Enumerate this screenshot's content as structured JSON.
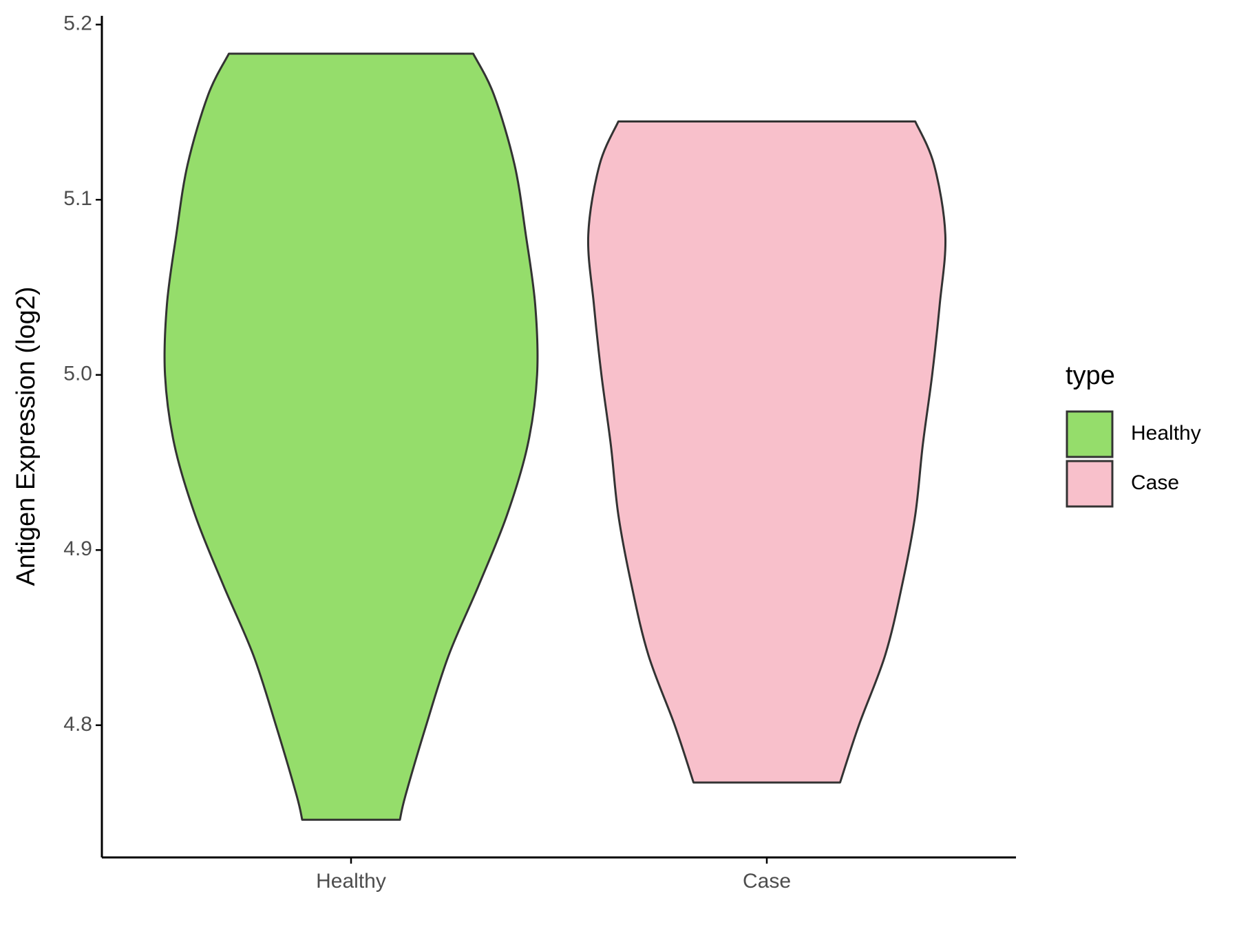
{
  "chart_data": {
    "type": "violin",
    "y_label": "Antigen Expression (log2)",
    "legend_title": "type",
    "categories": [
      "Healthy",
      "Case"
    ],
    "series": [
      {
        "name": "Healthy",
        "color": "#95dd6b",
        "y": [
          5.1834,
          5.16,
          5.12,
          5.08,
          5.04,
          5.0,
          4.96,
          4.92,
          4.88,
          4.84,
          4.8,
          4.76,
          4.746
        ],
        "density": [
          0.65,
          0.76,
          0.87,
          0.93,
          0.98,
          0.99,
          0.94,
          0.83,
          0.68,
          0.52,
          0.4,
          0.29,
          0.26
        ]
      },
      {
        "name": "Case",
        "color": "#f8c0cb",
        "y": [
          5.1447,
          5.12,
          5.08,
          5.04,
          5.0,
          4.96,
          4.92,
          4.88,
          4.84,
          4.8,
          4.7673
        ],
        "density": [
          0.79,
          0.89,
          0.95,
          0.92,
          0.88,
          0.83,
          0.79,
          0.72,
          0.63,
          0.49,
          0.39
        ]
      }
    ],
    "ylim": [
      4.7245,
      5.205
    ],
    "yticks": [
      4.8,
      4.9,
      {
        "value": 5.0,
        "label": "5.0"
      },
      5.1,
      5.2
    ]
  }
}
